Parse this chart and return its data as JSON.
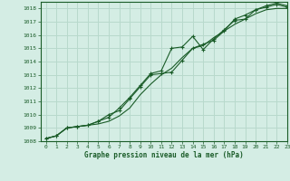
{
  "title": "Graphe pression niveau de la mer (hPa)",
  "background_color": "#d4ede4",
  "grid_color": "#b8d9cc",
  "line_color": "#1a5c28",
  "marker_color": "#1a5c28",
  "xlim": [
    -0.5,
    23
  ],
  "ylim": [
    1008,
    1018.5
  ],
  "xticks": [
    0,
    1,
    2,
    3,
    4,
    5,
    6,
    7,
    8,
    9,
    10,
    11,
    12,
    13,
    14,
    15,
    16,
    17,
    18,
    19,
    20,
    21,
    22,
    23
  ],
  "yticks": [
    1008,
    1009,
    1010,
    1011,
    1012,
    1013,
    1014,
    1015,
    1016,
    1017,
    1018
  ],
  "series1_x": [
    0,
    1,
    2,
    3,
    4,
    5,
    6,
    7,
    8,
    9,
    10,
    11,
    12,
    13,
    14,
    15,
    16,
    17,
    18,
    19,
    20,
    21,
    22,
    23
  ],
  "series1_y": [
    1008.2,
    1008.4,
    1009.0,
    1009.1,
    1009.2,
    1009.3,
    1009.5,
    1009.9,
    1010.5,
    1011.5,
    1012.3,
    1013.0,
    1013.5,
    1014.3,
    1015.0,
    1015.2,
    1015.8,
    1016.3,
    1016.8,
    1017.2,
    1017.6,
    1017.9,
    1018.0,
    1018.0
  ],
  "series2_x": [
    0,
    1,
    2,
    3,
    4,
    5,
    6,
    7,
    8,
    9,
    10,
    11,
    12,
    13,
    14,
    15,
    16,
    17,
    18,
    19,
    20,
    21,
    22,
    23
  ],
  "series2_y": [
    1008.2,
    1008.4,
    1009.0,
    1009.1,
    1009.2,
    1009.5,
    1009.8,
    1010.5,
    1011.3,
    1012.2,
    1013.1,
    1013.3,
    1015.0,
    1015.1,
    1015.9,
    1014.9,
    1015.7,
    1016.4,
    1017.1,
    1017.2,
    1017.9,
    1018.2,
    1018.4,
    1018.2
  ],
  "series3_x": [
    0,
    1,
    2,
    3,
    4,
    5,
    6,
    7,
    8,
    9,
    10,
    11,
    12,
    13,
    14,
    15,
    16,
    17,
    18,
    19,
    20,
    21,
    22,
    23
  ],
  "series3_y": [
    1008.2,
    1008.4,
    1009.0,
    1009.1,
    1009.2,
    1009.5,
    1010.0,
    1010.3,
    1011.2,
    1012.1,
    1013.0,
    1013.1,
    1013.2,
    1014.1,
    1015.0,
    1015.3,
    1015.6,
    1016.3,
    1017.2,
    1017.5,
    1017.9,
    1018.1,
    1018.3,
    1018.1
  ]
}
